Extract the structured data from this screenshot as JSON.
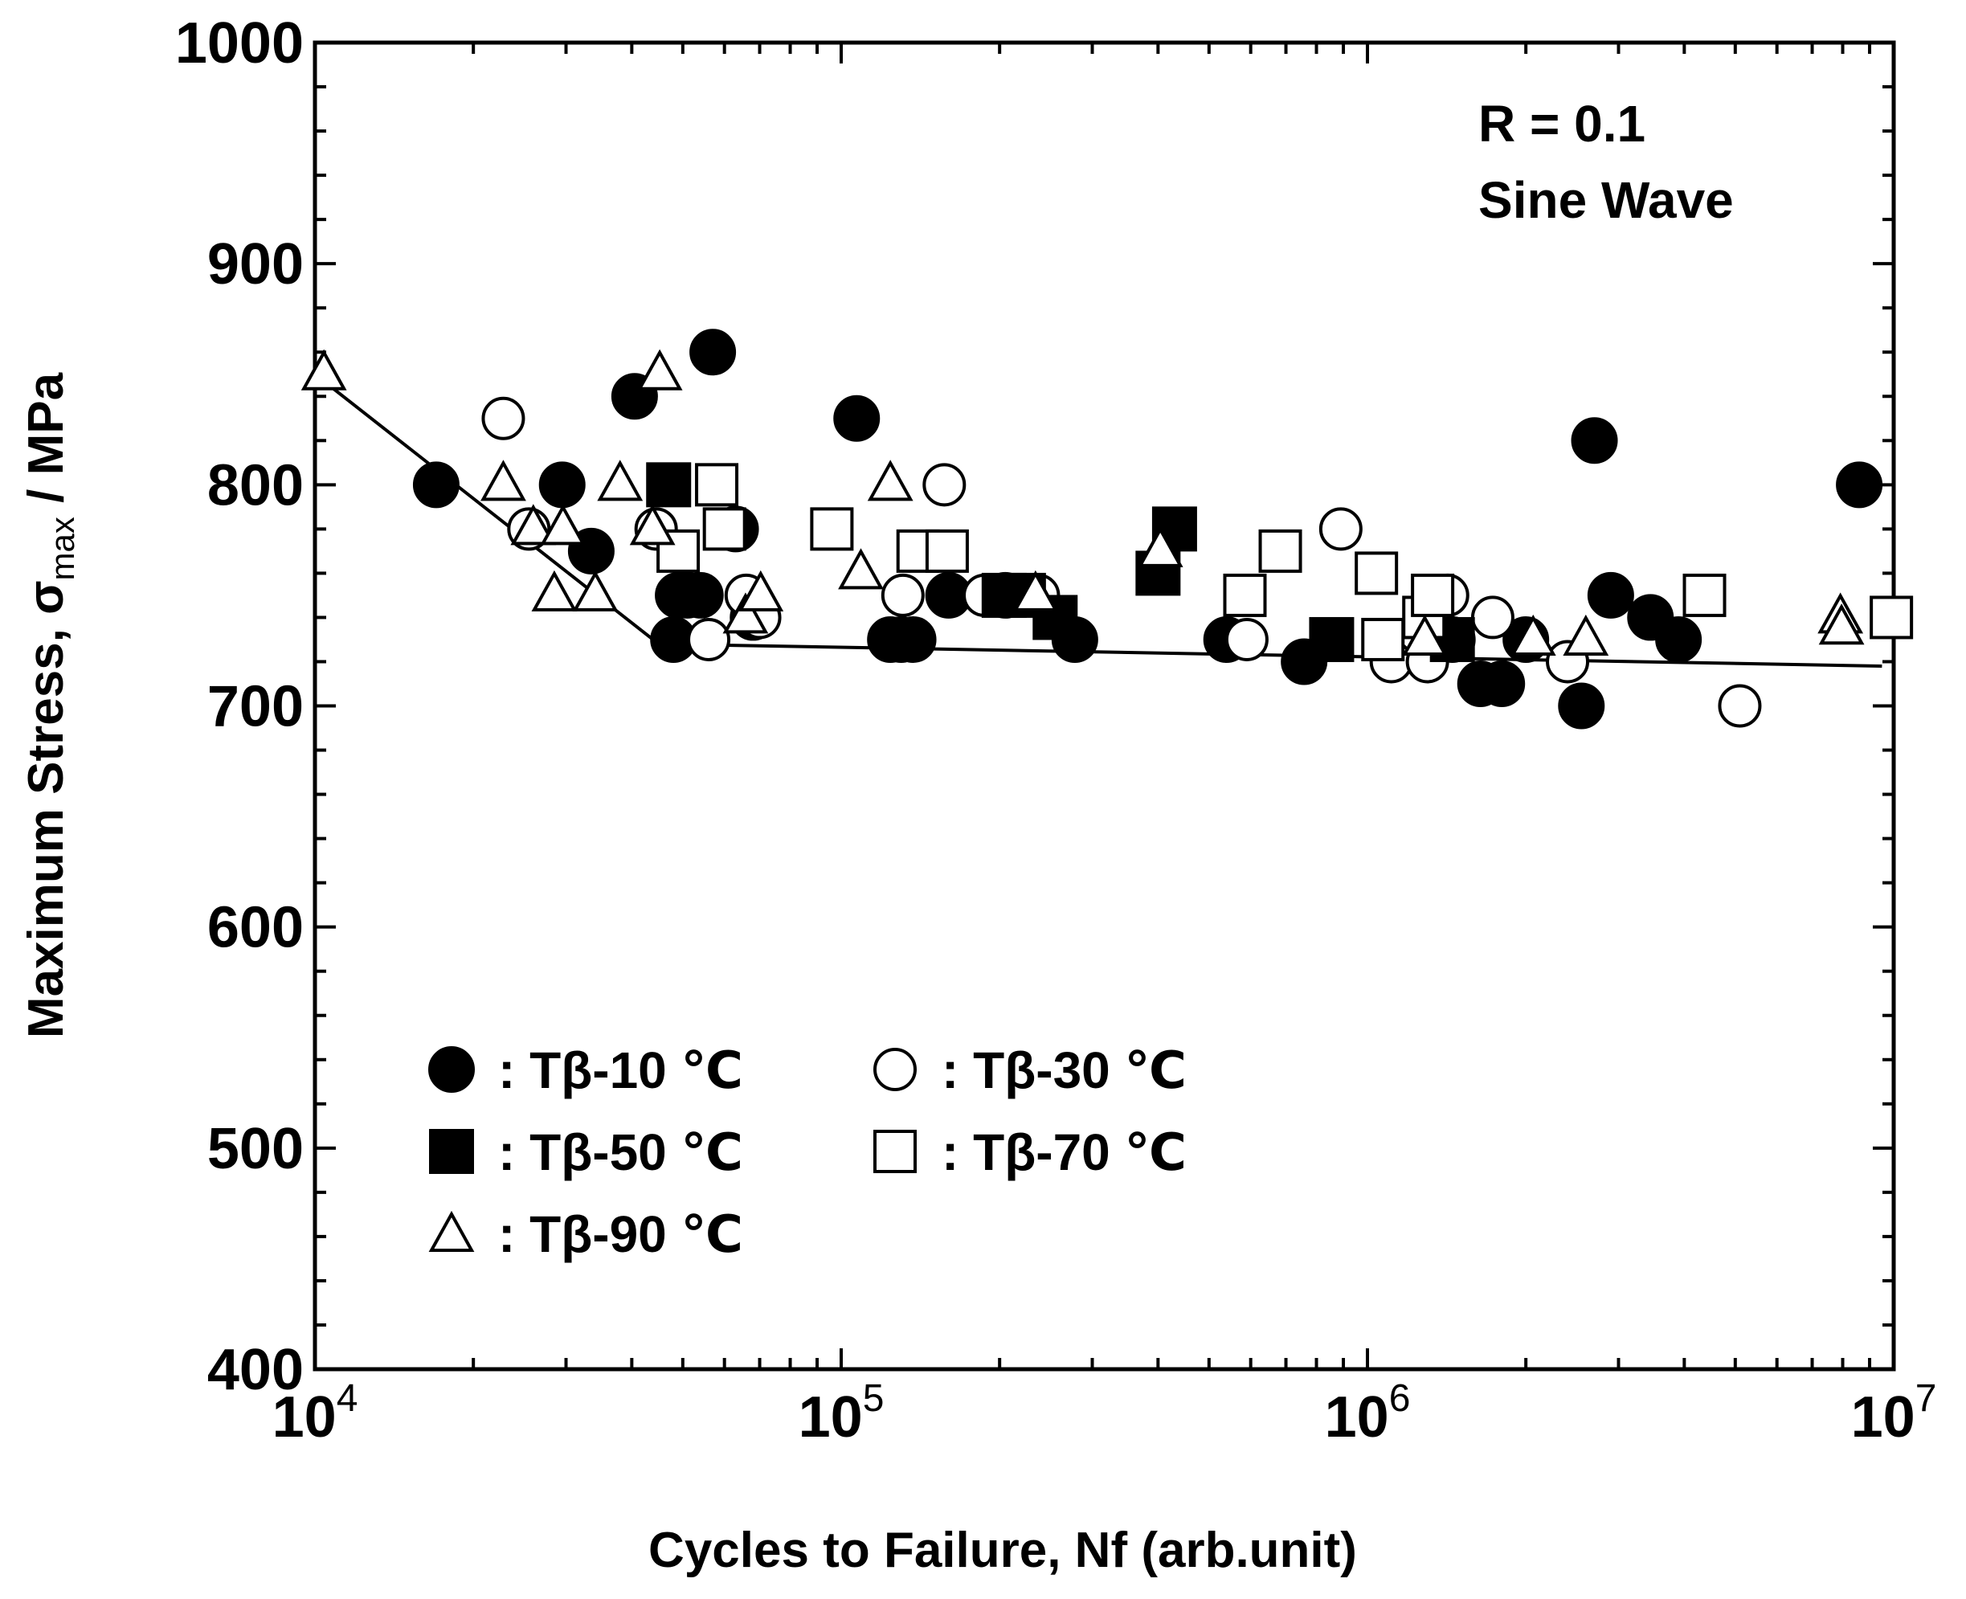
{
  "chart_data": {
    "type": "scatter",
    "xscale": "log",
    "xlim": [
      10000,
      10000000
    ],
    "ylim": [
      400,
      1000
    ],
    "xlabel": "Cycles to Failure, Nf (arb.unit)",
    "ylabel": {
      "main": "Maximum Stress, σ",
      "sub": "max",
      "unit": " / MPa"
    },
    "y_ticks": [
      400,
      500,
      600,
      700,
      800,
      900,
      1000
    ],
    "x_ticks": [
      {
        "value": 10000,
        "base": "10",
        "exp": "4"
      },
      {
        "value": 100000,
        "base": "10",
        "exp": "5"
      },
      {
        "value": 1000000,
        "base": "10",
        "exp": "6"
      },
      {
        "value": 10000000,
        "base": "10",
        "exp": "7"
      }
    ],
    "annotations": [
      "R = 0.1",
      "Sine Wave"
    ],
    "legend": [
      {
        "marker": "circle-filled",
        "label": ": Tβ-10 ℃"
      },
      {
        "marker": "circle-open",
        "label": ": Tβ-30 ℃"
      },
      {
        "marker": "square-filled",
        "label": ": Tβ-50 ℃"
      },
      {
        "marker": "square-open",
        "label": ": Tβ-70 ℃"
      },
      {
        "marker": "triangle-open",
        "label": ": Tβ-90 ℃"
      }
    ],
    "series": [
      {
        "name": "Tβ-10 ℃",
        "marker": "circle-filled",
        "points": [
          [
            17000,
            800
          ],
          [
            29500,
            800
          ],
          [
            33500,
            770
          ],
          [
            40500,
            840
          ],
          [
            48000,
            730
          ],
          [
            49000,
            750
          ],
          [
            51000,
            750
          ],
          [
            54000,
            750
          ],
          [
            57000,
            860
          ],
          [
            63000,
            780
          ],
          [
            68000,
            740
          ],
          [
            107000,
            830
          ],
          [
            124000,
            730
          ],
          [
            130000,
            730
          ],
          [
            137000,
            730
          ],
          [
            160000,
            750
          ],
          [
            205000,
            750
          ],
          [
            278000,
            730
          ],
          [
            540000,
            730
          ],
          [
            758000,
            720
          ],
          [
            1450000,
            730
          ],
          [
            1640000,
            710
          ],
          [
            1800000,
            710
          ],
          [
            2000000,
            730
          ],
          [
            2550000,
            700
          ],
          [
            2700000,
            820
          ],
          [
            2900000,
            750
          ],
          [
            3450000,
            740
          ],
          [
            3900000,
            730
          ],
          [
            8600000,
            800
          ]
        ]
      },
      {
        "name": "Tβ-30 ℃",
        "marker": "circle-open",
        "points": [
          [
            22800,
            830
          ],
          [
            25500,
            780
          ],
          [
            44500,
            780
          ],
          [
            56000,
            730
          ],
          [
            66000,
            750
          ],
          [
            70000,
            740
          ],
          [
            131000,
            750
          ],
          [
            157000,
            800
          ],
          [
            187000,
            750
          ],
          [
            237000,
            750
          ],
          [
            590000,
            730
          ],
          [
            890000,
            780
          ],
          [
            1110000,
            720
          ],
          [
            1300000,
            720
          ],
          [
            1420000,
            750
          ],
          [
            1730000,
            740
          ],
          [
            2400000,
            720
          ],
          [
            5100000,
            700
          ]
        ]
      },
      {
        "name": "Tβ-50 ℃",
        "marker": "square-filled",
        "points": [
          [
            47000,
            800
          ],
          [
            204000,
            750
          ],
          [
            222000,
            750
          ],
          [
            255000,
            740
          ],
          [
            400000,
            760
          ],
          [
            430000,
            780
          ],
          [
            855000,
            730
          ],
          [
            1450000,
            730
          ]
        ]
      },
      {
        "name": "Tβ-70 ℃",
        "marker": "square-open",
        "points": [
          [
            49000,
            770
          ],
          [
            58000,
            800
          ],
          [
            60000,
            780
          ],
          [
            96000,
            780
          ],
          [
            140000,
            770
          ],
          [
            159000,
            770
          ],
          [
            585000,
            750
          ],
          [
            683000,
            770
          ],
          [
            1040000,
            760
          ],
          [
            1070000,
            730
          ],
          [
            1280000,
            740
          ],
          [
            1330000,
            750
          ],
          [
            4370000,
            750
          ],
          [
            9900000,
            740
          ]
        ]
      },
      {
        "name": "Tβ-90 ℃",
        "marker": "triangle-open",
        "points": [
          [
            10400,
            850
          ],
          [
            22800,
            800
          ],
          [
            26000,
            780
          ],
          [
            28500,
            750
          ],
          [
            29600,
            780
          ],
          [
            34100,
            750
          ],
          [
            38000,
            800
          ],
          [
            43800,
            780
          ],
          [
            45200,
            850
          ],
          [
            65800,
            740
          ],
          [
            70300,
            750
          ],
          [
            109000,
            760
          ],
          [
            124000,
            800
          ],
          [
            234000,
            750
          ],
          [
            404000,
            770
          ],
          [
            1285000,
            730
          ],
          [
            2065000,
            730
          ],
          [
            2600000,
            730
          ],
          [
            7920000,
            740
          ],
          [
            7960000,
            735
          ]
        ]
      }
    ],
    "fit_line": [
      [
        10000,
        850
      ],
      [
        45000,
        728
      ],
      [
        9500000,
        718
      ]
    ]
  }
}
